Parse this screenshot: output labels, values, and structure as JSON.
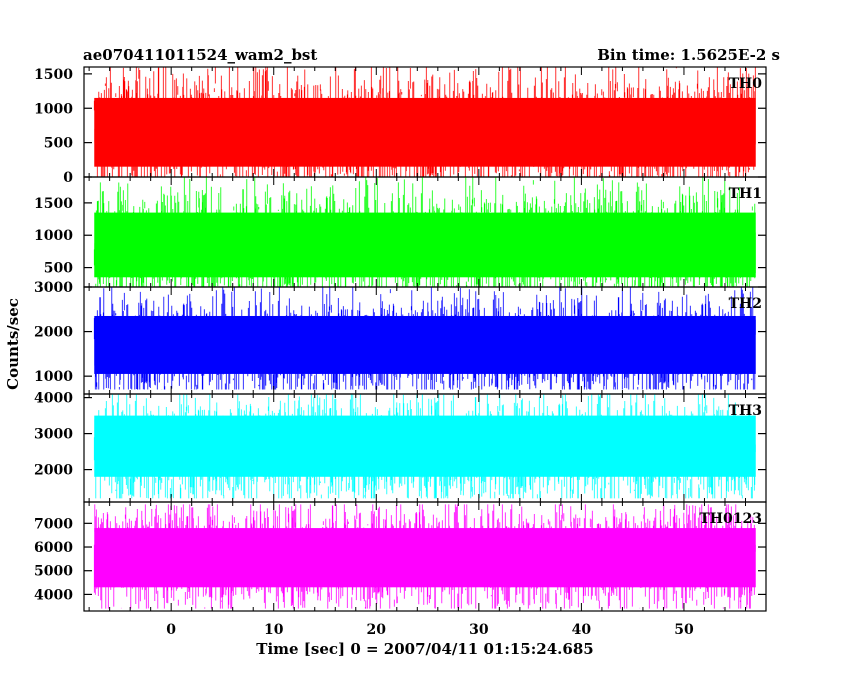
{
  "header": {
    "left_title": "ae070411011524_wam2_bst",
    "right_title": "Bin time: 1.5625E-2 s"
  },
  "chart_data": {
    "type": "line",
    "xlabel": "Time [sec] 0 = 2007/04/11 01:15:24.685",
    "ylabel": "Counts/sec",
    "xlim": [
      -8.5,
      58
    ],
    "x_ticks": [
      "0",
      "10",
      "20",
      "30",
      "40",
      "50"
    ],
    "x_tick_values": [
      0,
      10,
      20,
      30,
      40,
      50
    ],
    "data_range_x": [
      -7.5,
      57
    ],
    "bin_time_s": 0.015625,
    "panels": [
      {
        "name": "TH0",
        "color": "#ff0000",
        "ylim": [
          0,
          1600
        ],
        "yticks": [
          0,
          500,
          1000,
          1500
        ],
        "ytick_labels": [
          "0",
          "500",
          "1000",
          "1500"
        ],
        "mean": 650,
        "band_low": 150,
        "band_high": 1150,
        "min": 0,
        "max": 1600
      },
      {
        "name": "TH1",
        "color": "#00ff00",
        "ylim": [
          200,
          1900
        ],
        "yticks": [
          500,
          1000,
          1500
        ],
        "ytick_labels": [
          "500",
          "1000",
          "1500"
        ],
        "mean": 850,
        "band_low": 350,
        "band_high": 1350,
        "min": 200,
        "max": 1900
      },
      {
        "name": "TH2",
        "color": "#0000ff",
        "ylim": [
          600,
          3000
        ],
        "yticks": [
          1000,
          2000,
          3000
        ],
        "ytick_labels": [
          "1000",
          "2000",
          "3000"
        ],
        "mean": 1650,
        "band_low": 1050,
        "band_high": 2350,
        "min": 700,
        "max": 3000
      },
      {
        "name": "TH3",
        "color": "#00ffff",
        "ylim": [
          1100,
          4100
        ],
        "yticks": [
          2000,
          3000,
          4000
        ],
        "ytick_labels": [
          "2000",
          "3000",
          "4000"
        ],
        "mean": 2550,
        "band_low": 1800,
        "band_high": 3500,
        "min": 1200,
        "max": 4100
      },
      {
        "name": "TH0123",
        "color": "#ff00ff",
        "ylim": [
          3300,
          7900
        ],
        "yticks": [
          4000,
          5000,
          6000,
          7000
        ],
        "ytick_labels": [
          "4000",
          "5000",
          "6000",
          "7000"
        ],
        "mean": 5600,
        "band_low": 4300,
        "band_high": 6800,
        "min": 3400,
        "max": 7800
      }
    ]
  }
}
